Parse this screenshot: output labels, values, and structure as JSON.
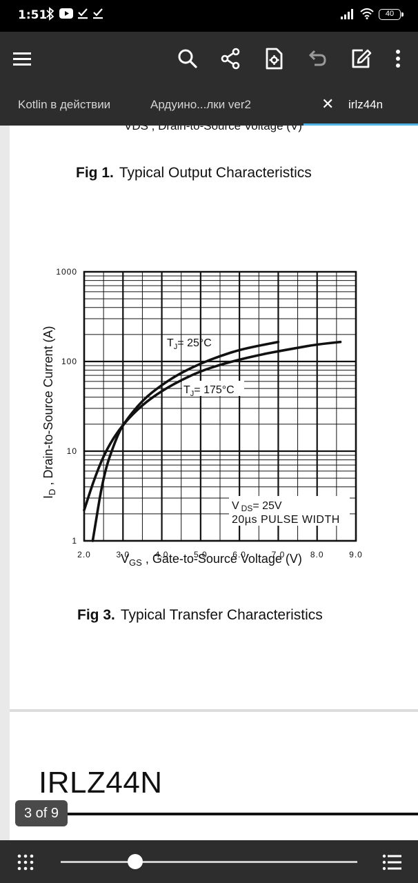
{
  "status_bar": {
    "time": "1:51",
    "battery": "40",
    "icons": [
      "bluetooth-icon",
      "youtube-icon",
      "download-done-icon",
      "download-done-icon",
      "signal-icon",
      "wifi-icon",
      "battery-icon"
    ]
  },
  "toolbar": {
    "icons": [
      "menu-icon",
      "search-icon",
      "share-icon",
      "document-settings-icon",
      "undo-icon",
      "edit-icon",
      "more-vert-icon"
    ]
  },
  "tabs": [
    {
      "label": "Kotlin в действии",
      "active": false
    },
    {
      "label": "Ардуино...лки ver2",
      "active": false
    },
    {
      "label": "irlz44n",
      "active": true
    }
  ],
  "tab_close_glyph": "✕",
  "document": {
    "fig1_axis_cutoff": "VDS , Drain-to-Source Voltage (V)",
    "fig1_caption_num": "Fig 1.",
    "fig1_caption_text": "Typical Output Characteristics",
    "fig3_caption_num": "Fig 3.",
    "fig3_caption_text": "Typical Transfer Characteristics",
    "next_page_heading": "IRLZ44N"
  },
  "page_indicator": "3 of 9",
  "navigation": {
    "current_page": 3,
    "total_pages": 9
  },
  "chart_data": {
    "type": "line",
    "xlabel_main": "V",
    "xlabel_sub": "GS",
    "xlabel_rest": " , Gate-to-Source Voltage (V)",
    "ylabel_main": "I",
    "ylabel_sub": "D",
    "ylabel_rest": " , Drain-to-Source Current (A)",
    "xlim": [
      2.0,
      9.0
    ],
    "ylim": [
      1,
      1000
    ],
    "y_scale": "log",
    "x_ticks": [
      "2.0",
      "3.0",
      "4.0",
      "5.0",
      "6.0",
      "7.0",
      "8.0",
      "9.0"
    ],
    "y_ticks": [
      "1",
      "10",
      "100",
      "1000"
    ],
    "grid": true,
    "series": [
      {
        "name": "TJ= 25°C",
        "label_main": "T",
        "label_sub": "J",
        "label_rest": "= 25°C",
        "x": [
          2.22,
          2.5,
          2.8,
          3.0,
          3.5,
          4.0,
          4.5,
          5.0,
          5.5,
          6.0,
          6.5,
          7.0
        ],
        "y": [
          1.0,
          5.5,
          13,
          20,
          37,
          55,
          75,
          95,
          115,
          135,
          150,
          165
        ]
      },
      {
        "name": "TJ= 175°C",
        "label_main": "T",
        "label_sub": "J",
        "label_rest": "= 175°C",
        "x": [
          2.0,
          2.3,
          2.6,
          3.0,
          3.5,
          4.0,
          4.5,
          5.0,
          5.5,
          6.0,
          6.5,
          7.0,
          7.5,
          8.0,
          8.6
        ],
        "y": [
          2.2,
          5.5,
          11,
          20,
          33,
          47,
          62,
          78,
          92,
          105,
          118,
          130,
          142,
          155,
          165
        ]
      }
    ],
    "annotation_line1_main": "V",
    "annotation_line1_sub": "DS",
    "annotation_line1_rest": "= 25V",
    "annotation_line2": "20µs PULSE WIDTH"
  }
}
